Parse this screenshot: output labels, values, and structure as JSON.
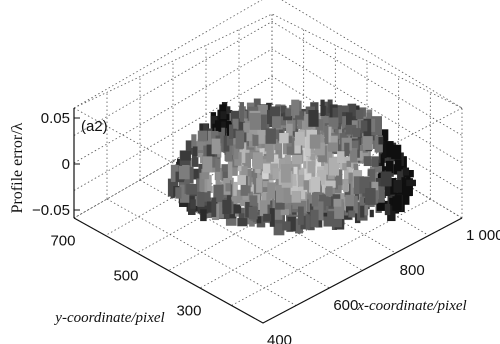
{
  "chart_data": {
    "type": "surface3d",
    "panel_label": "(a2)",
    "zlabel": "Profile error/λ",
    "xlabel": "x-coordinate/pixel",
    "ylabel": "y-coordinate/pixel",
    "z_ticks": [
      "0.05",
      "0",
      "−0.05"
    ],
    "z_tick_values": [
      0.05,
      0,
      -0.05
    ],
    "x_ticks": [
      "400",
      "600",
      "800",
      "1 000"
    ],
    "x_tick_values": [
      400,
      600,
      800,
      1000
    ],
    "y_ticks": [
      "300",
      "500",
      "700"
    ],
    "y_tick_values": [
      300,
      500,
      700
    ],
    "xlim": [
      400,
      1000
    ],
    "ylim": [
      200,
      800
    ],
    "zlim": [
      -0.05,
      0.05
    ],
    "grid": true,
    "colormap": "grayscale",
    "colors": {
      "axis": "#111111",
      "grid": "#555555",
      "surface_light": "#f2f2f2",
      "surface_dark": "#101010"
    }
  }
}
